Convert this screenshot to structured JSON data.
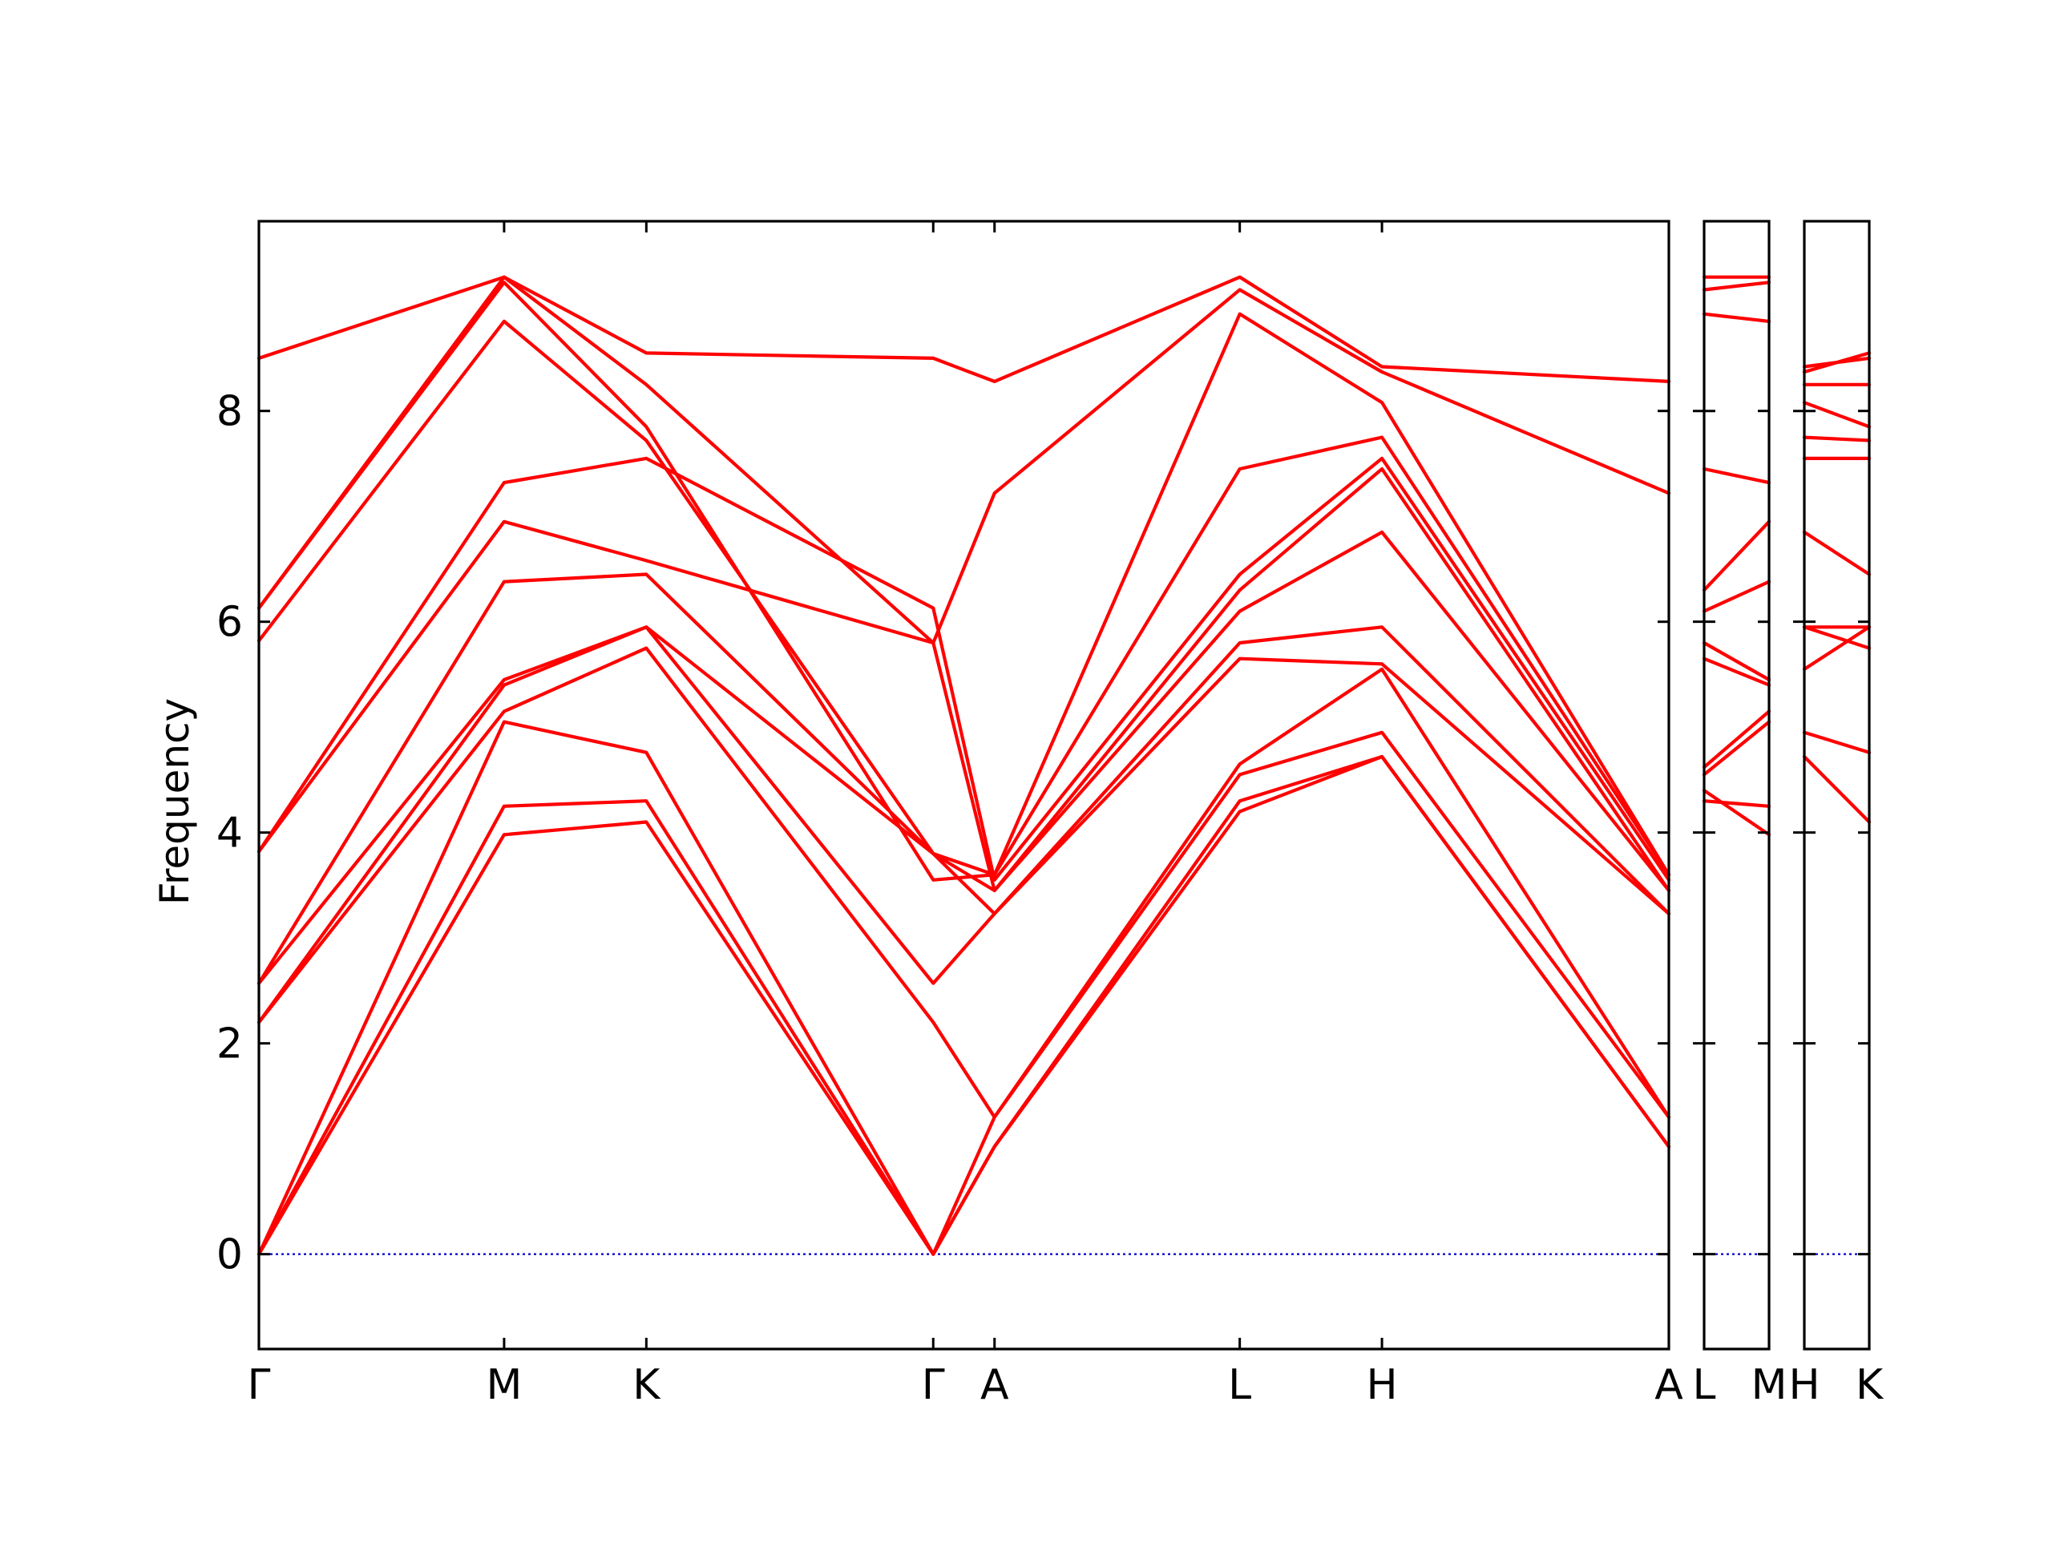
{
  "chart_data": {
    "type": "line",
    "title": "",
    "xlabel": "",
    "ylabel": "Frequency",
    "ylim": [
      -0.9,
      9.8
    ],
    "yticks": [
      0,
      2,
      4,
      6,
      8
    ],
    "grid": false,
    "legend": "none",
    "colors": {
      "bands": "#ff0000",
      "zero_line": "#0000cc",
      "axes": "#000000"
    },
    "panels": [
      {
        "tick_labels": [
          "Γ",
          "M",
          "K",
          "Γ",
          "A",
          "L",
          "H",
          "A"
        ],
        "x": [
          0,
          1,
          1.58,
          2.75,
          3.0,
          4.0,
          4.58,
          5.75
        ],
        "series": [
          {
            "values": [
              0.0,
              3.98,
              4.1,
              0.0,
              1.02,
              4.2,
              4.72,
              1.02
            ]
          },
          {
            "values": [
              0.0,
              4.25,
              4.3,
              0.0,
              1.02,
              4.3,
              4.72,
              1.02
            ]
          },
          {
            "values": [
              0.0,
              5.05,
              4.76,
              0.0,
              1.3,
              4.55,
              4.95,
              1.3
            ]
          },
          {
            "values": [
              2.2,
              5.15,
              5.75,
              2.2,
              1.3,
              4.65,
              5.55,
              1.3
            ]
          },
          {
            "values": [
              2.2,
              5.4,
              5.95,
              2.57,
              3.23,
              5.65,
              5.6,
              3.23
            ]
          },
          {
            "values": [
              2.57,
              5.45,
              5.95,
              3.8,
              3.23,
              5.8,
              5.95,
              3.23
            ]
          },
          {
            "values": [
              2.57,
              6.38,
              6.45,
              3.8,
              3.45,
              6.1,
              6.85,
              3.45
            ]
          },
          {
            "values": [
              3.82,
              6.95,
              6.58,
              5.8,
              3.45,
              6.3,
              7.45,
              3.45
            ]
          },
          {
            "values": [
              3.82,
              7.32,
              7.55,
              6.13,
              3.55,
              6.45,
              7.55,
              3.55
            ]
          },
          {
            "values": [
              5.82,
              8.85,
              7.72,
              3.8,
              3.6,
              7.45,
              7.75,
              3.6
            ]
          },
          {
            "values": [
              6.13,
              9.22,
              7.85,
              3.55,
              3.6,
              8.92,
              8.08,
              3.6
            ]
          },
          {
            "values": [
              6.13,
              9.27,
              8.25,
              5.8,
              7.22,
              9.15,
              8.37,
              7.22
            ]
          },
          {
            "values": [
              8.5,
              9.27,
              8.55,
              8.5,
              8.28,
              9.27,
              8.42,
              8.28
            ]
          }
        ]
      },
      {
        "tick_labels": [
          "L",
          "M"
        ],
        "x": [
          0,
          1
        ],
        "series": [
          {
            "values": [
              4.4,
              3.98
            ]
          },
          {
            "values": [
              4.3,
              4.25
            ]
          },
          {
            "values": [
              4.55,
              5.05
            ]
          },
          {
            "values": [
              4.62,
              5.15
            ]
          },
          {
            "values": [
              5.65,
              5.4
            ]
          },
          {
            "values": [
              5.8,
              5.45
            ]
          },
          {
            "values": [
              6.1,
              6.38
            ]
          },
          {
            "values": [
              6.3,
              6.95
            ]
          },
          {
            "values": [
              7.45,
              7.32
            ]
          },
          {
            "values": [
              8.92,
              8.85
            ]
          },
          {
            "values": [
              9.15,
              9.22
            ]
          },
          {
            "values": [
              9.27,
              9.27
            ]
          }
        ]
      },
      {
        "tick_labels": [
          "H",
          "K"
        ],
        "x": [
          0,
          1
        ],
        "series": [
          {
            "values": [
              4.72,
              4.1
            ]
          },
          {
            "values": [
              4.95,
              4.76
            ]
          },
          {
            "values": [
              5.55,
              5.95
            ]
          },
          {
            "values": [
              5.95,
              5.75
            ]
          },
          {
            "values": [
              5.95,
              5.95
            ]
          },
          {
            "values": [
              6.85,
              6.45
            ]
          },
          {
            "values": [
              7.55,
              7.55
            ]
          },
          {
            "values": [
              7.75,
              7.72
            ]
          },
          {
            "values": [
              8.08,
              7.85
            ]
          },
          {
            "values": [
              8.25,
              8.25
            ]
          },
          {
            "values": [
              8.37,
              8.55
            ]
          },
          {
            "values": [
              8.42,
              8.5
            ]
          }
        ]
      }
    ]
  }
}
